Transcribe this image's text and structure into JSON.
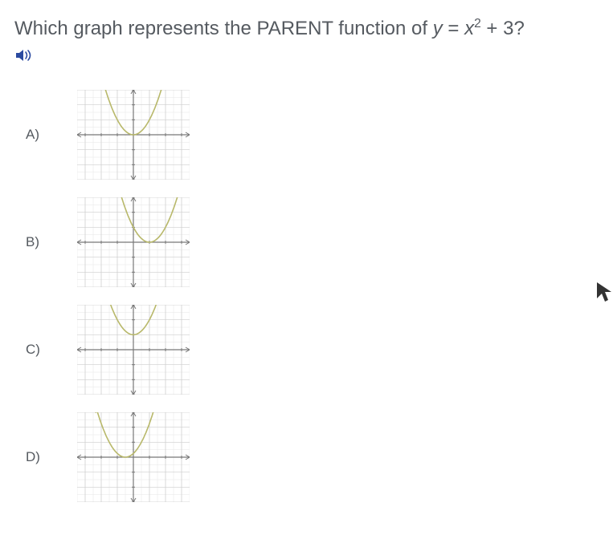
{
  "question": {
    "prefix": "Which graph represents the PARENT function of ",
    "expr_lhs": "y",
    "expr_eq": " = ",
    "expr_x": "x",
    "expr_exp": "2",
    "expr_tail": " + 3?"
  },
  "audio_icon": {
    "color": "#2b4aa0"
  },
  "grid": {
    "background": "#ffffff",
    "minor_line": "#e6e6e6",
    "major_line": "#cfcfcf",
    "axis_color": "#777777",
    "tick_color": "#777777",
    "tick_label_color": "#888888",
    "curve_color": "#b8b86a",
    "curve_width": 1.6,
    "xlim": [
      -3.5,
      3.5
    ],
    "ylim": [
      -3,
      3
    ],
    "minor_step": 0.5,
    "major_step": 1
  },
  "choices": [
    {
      "label": "A)",
      "parabola": {
        "vertex_x": 0,
        "vertex_y": 0,
        "a": 1.0,
        "x_from": -2,
        "x_to": 2
      }
    },
    {
      "label": "B)",
      "parabola": {
        "vertex_x": 1,
        "vertex_y": 0,
        "a": 1.0,
        "x_from": -1,
        "x_to": 3
      }
    },
    {
      "label": "C)",
      "parabola": {
        "vertex_x": 0,
        "vertex_y": 1,
        "a": 1.0,
        "x_from": -1.6,
        "x_to": 1.6
      }
    },
    {
      "label": "D)",
      "parabola": {
        "vertex_x": -0.5,
        "vertex_y": 0,
        "a": 1.0,
        "x_from": -2.3,
        "x_to": 1.4
      }
    }
  ],
  "cursor_color": "#333333"
}
